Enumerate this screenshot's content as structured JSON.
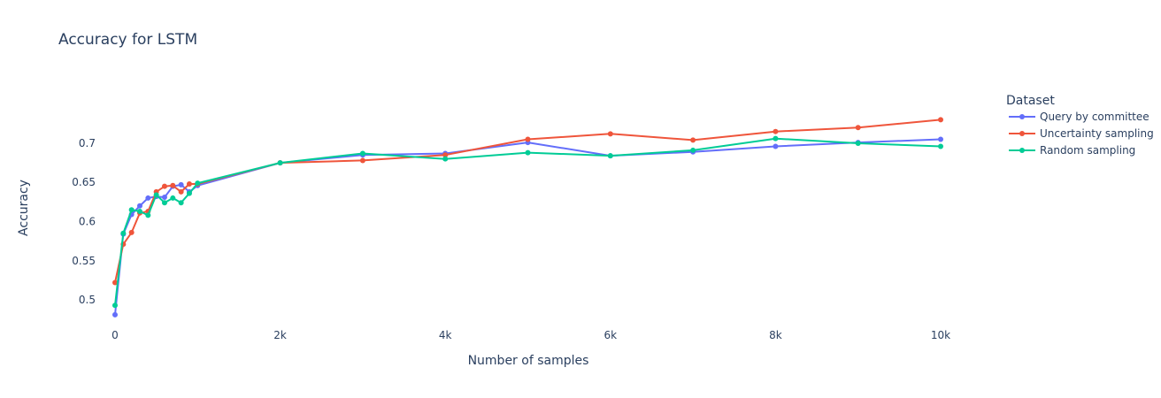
{
  "chart_data": {
    "type": "line",
    "title": "Accuracy for LSTM",
    "xlabel": "Number of samples",
    "ylabel": "Accuracy",
    "xlim": [
      -150,
      10150
    ],
    "ylim": [
      0.465,
      0.77
    ],
    "x_ticks": [
      0,
      2000,
      4000,
      6000,
      8000,
      10000
    ],
    "x_tick_labels": [
      "0",
      "2k",
      "4k",
      "6k",
      "8k",
      "10k"
    ],
    "y_ticks": [
      0.5,
      0.55,
      0.6,
      0.65,
      0.7
    ],
    "y_tick_labels": [
      "0.5",
      "0.55",
      "0.6",
      "0.65",
      "0.7"
    ],
    "legend_title": "Dataset",
    "legend_position": "right",
    "series": [
      {
        "name": "Query by committee",
        "color": "#636efa",
        "x": [
          0,
          100,
          200,
          300,
          400,
          500,
          600,
          700,
          800,
          900,
          1000,
          2000,
          3000,
          4000,
          5000,
          6000,
          7000,
          8000,
          9000,
          10000
        ],
        "y": [
          0.481,
          0.584,
          0.609,
          0.62,
          0.63,
          0.632,
          0.631,
          0.645,
          0.647,
          0.638,
          0.646,
          0.675,
          0.685,
          0.687,
          0.701,
          0.684,
          0.689,
          0.696,
          0.701,
          0.705
        ]
      },
      {
        "name": "Uncertainty sampling",
        "color": "#ef553b",
        "x": [
          0,
          100,
          200,
          300,
          400,
          500,
          600,
          700,
          800,
          900,
          1000,
          2000,
          3000,
          4000,
          5000,
          6000,
          7000,
          8000,
          9000,
          10000
        ],
        "y": [
          0.522,
          0.571,
          0.586,
          0.611,
          0.613,
          0.638,
          0.645,
          0.646,
          0.638,
          0.648,
          0.648,
          0.675,
          0.678,
          0.685,
          0.705,
          0.712,
          0.704,
          0.715,
          0.72,
          0.73
        ]
      },
      {
        "name": "Random sampling",
        "color": "#00cc96",
        "x": [
          0,
          100,
          200,
          300,
          400,
          500,
          600,
          700,
          800,
          900,
          1000,
          2000,
          3000,
          4000,
          5000,
          6000,
          7000,
          8000,
          9000,
          10000
        ],
        "y": [
          0.493,
          0.585,
          0.615,
          0.613,
          0.608,
          0.634,
          0.624,
          0.63,
          0.624,
          0.636,
          0.649,
          0.675,
          0.687,
          0.68,
          0.688,
          0.684,
          0.691,
          0.706,
          0.7,
          0.696
        ]
      }
    ]
  }
}
